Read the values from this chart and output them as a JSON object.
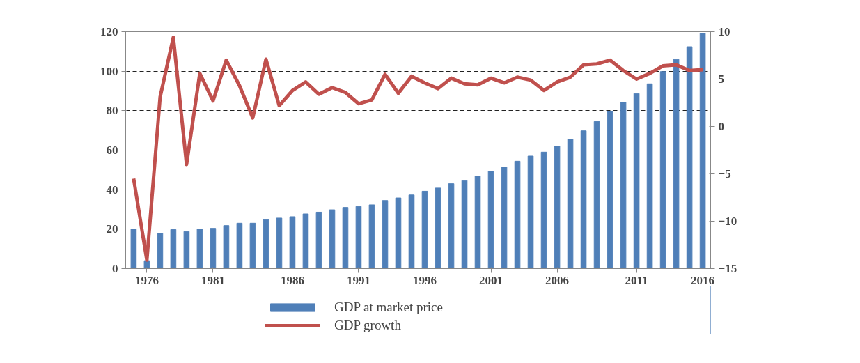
{
  "chart_data": {
    "type": "bar",
    "categories": [
      null,
      "1976",
      null,
      null,
      null,
      null,
      "1981",
      null,
      null,
      null,
      null,
      null,
      "1986",
      null,
      null,
      null,
      null,
      "1991",
      null,
      null,
      null,
      null,
      "1996",
      null,
      null,
      null,
      null,
      "2001",
      null,
      null,
      null,
      null,
      "2006",
      null,
      null,
      null,
      null,
      null,
      "2011",
      null,
      null,
      null,
      null,
      "2016"
    ],
    "series": [
      {
        "name": "GDP at market price",
        "color": "#4f7fb8",
        "values": [
          20,
          4,
          18,
          19.8,
          18.8,
          20,
          20.4,
          21.8,
          23,
          23,
          24.8,
          25.6,
          26.3,
          27.7,
          28.6,
          29.8,
          31,
          31.5,
          32.3,
          34.5,
          35.8,
          37.3,
          39.2,
          40.8,
          43,
          44.6,
          46.8,
          49.4,
          51.5,
          54.4,
          57,
          59,
          62,
          65.6,
          69.8,
          74.5,
          79.6,
          84.2,
          88.7,
          93.6,
          99.8,
          106,
          112.4,
          119.2
        ]
      },
      {
        "name": "GDP growth",
        "type": "line",
        "axis": "y2",
        "color": "#c0504d",
        "values": [
          -5.5,
          -14.1,
          3.1,
          9.4,
          -4.0,
          5.6,
          2.7,
          7.0,
          4.3,
          0.9,
          7.1,
          2.2,
          3.8,
          4.7,
          3.4,
          4.1,
          3.6,
          2.4,
          2.8,
          5.5,
          3.5,
          5.3,
          4.6,
          4.0,
          5.1,
          4.5,
          4.4,
          5.1,
          4.6,
          5.2,
          4.9,
          3.8,
          4.7,
          5.2,
          6.5,
          6.6,
          7.0,
          5.9,
          5.0,
          5.6,
          6.4,
          6.5,
          5.9,
          6.0
        ]
      }
    ],
    "ylim": [
      0,
      120
    ],
    "yticks": [
      0,
      20,
      40,
      60,
      80,
      100,
      120
    ],
    "y2lim": [
      -15,
      10
    ],
    "y2ticks": [
      -15,
      -10,
      -5,
      0,
      5,
      10
    ],
    "grid": "y",
    "legend": "bottom",
    "line_style": "solid"
  }
}
